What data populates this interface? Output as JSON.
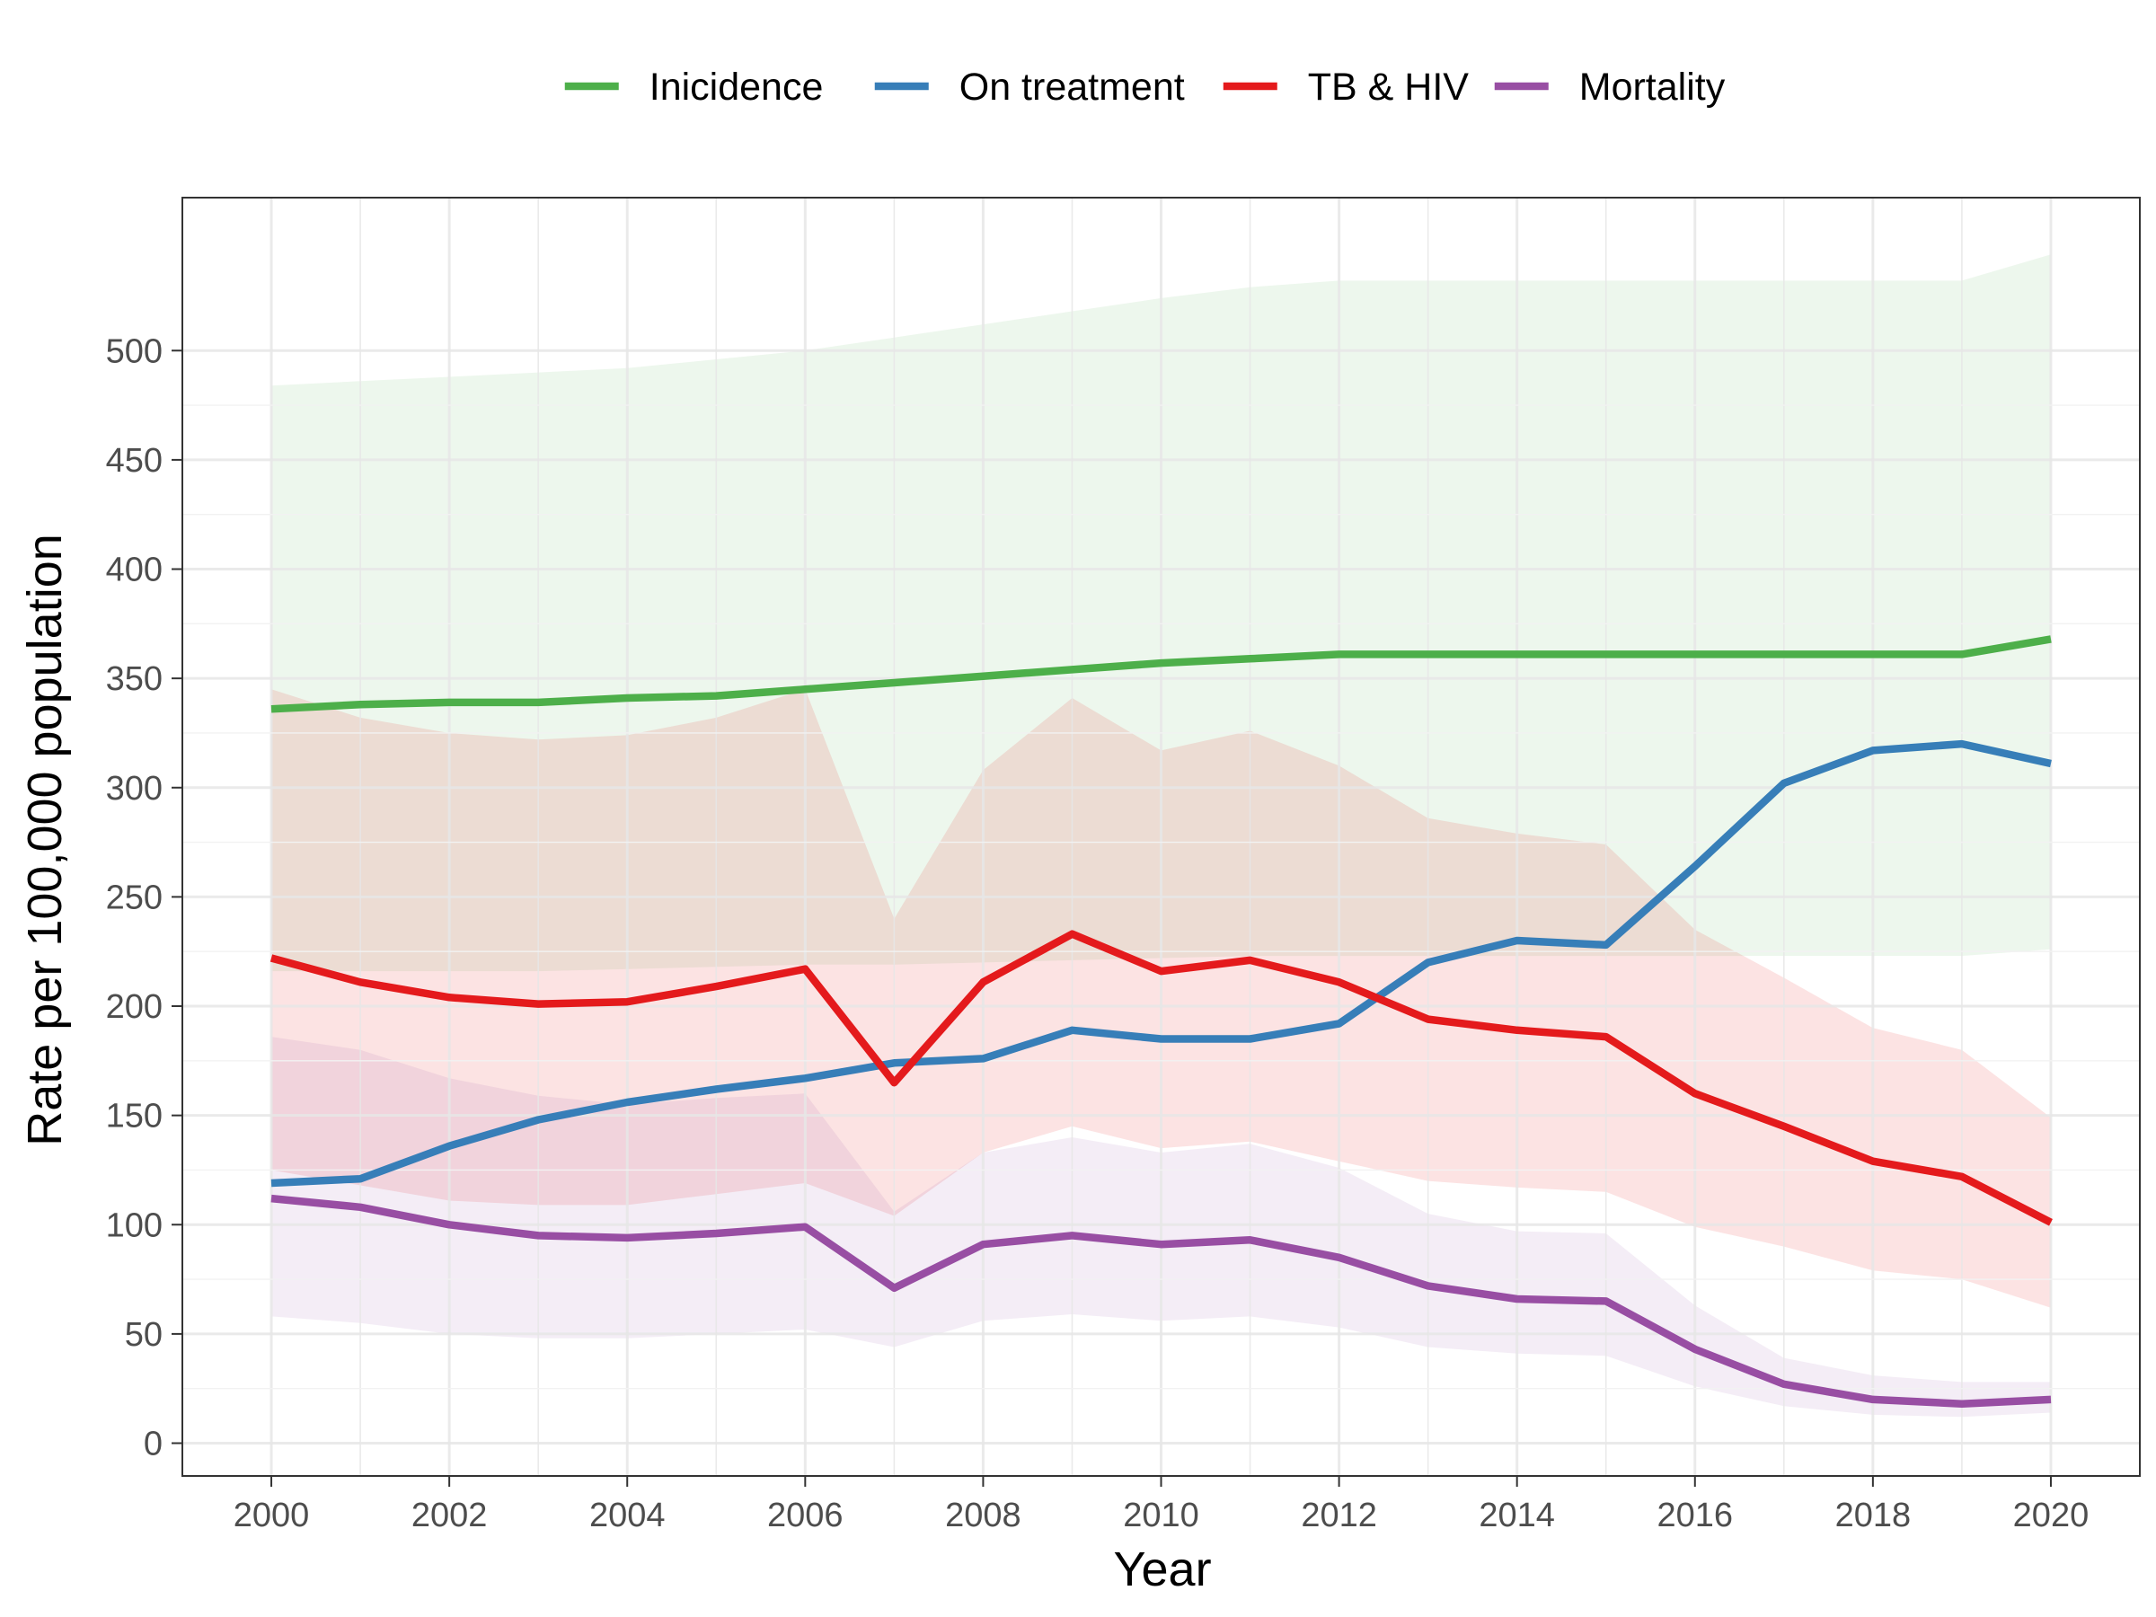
{
  "chart_data": {
    "type": "line",
    "xlabel": "Year",
    "ylabel": "Rate per 100,000 population",
    "xlim": [
      1999.0,
      2021.0
    ],
    "ylim": [
      -15,
      570
    ],
    "x_ticks": [
      2000,
      2002,
      2004,
      2006,
      2008,
      2010,
      2012,
      2014,
      2016,
      2018,
      2020
    ],
    "y_ticks": [
      0,
      50,
      100,
      150,
      200,
      250,
      300,
      350,
      400,
      450,
      500
    ],
    "x_tick_labels": [
      "2000",
      "2002",
      "2004",
      "2006",
      "2008",
      "2010",
      "2012",
      "2014",
      "2016",
      "2018",
      "2020"
    ],
    "y_tick_labels": [
      "0",
      "50",
      "100",
      "150",
      "200",
      "250",
      "300",
      "350",
      "400",
      "450",
      "500"
    ],
    "grid": true,
    "legend_position": "top",
    "x": [
      2000,
      2001,
      2002,
      2003,
      2004,
      2005,
      2006,
      2007,
      2008,
      2009,
      2010,
      2011,
      2012,
      2013,
      2014,
      2015,
      2016,
      2017,
      2018,
      2019,
      2020
    ],
    "series": [
      {
        "name": "Inicidence",
        "color": "#4daf4a",
        "values": [
          336,
          338,
          339,
          339,
          341,
          342,
          345,
          348,
          351,
          354,
          357,
          359,
          361,
          361,
          361,
          361,
          361,
          361,
          361,
          361,
          368
        ],
        "lower": [
          216,
          216,
          216,
          216,
          217,
          218,
          219,
          219,
          220,
          221,
          222,
          223,
          223,
          223,
          223,
          223,
          223,
          223,
          223,
          223,
          226
        ],
        "upper": [
          484,
          486,
          488,
          490,
          492,
          496,
          500,
          506,
          512,
          518,
          524,
          529,
          532,
          532,
          532,
          532,
          532,
          532,
          532,
          532,
          544
        ]
      },
      {
        "name": "On treatment",
        "color": "#377eb8",
        "values": [
          119,
          121,
          136,
          148,
          156,
          162,
          167,
          174,
          176,
          189,
          185,
          185,
          192,
          220,
          230,
          228,
          264,
          302,
          317,
          320,
          311
        ]
      },
      {
        "name": "TB & HIV",
        "color": "#e41a1c",
        "values": [
          222,
          211,
          204,
          201,
          202,
          209,
          217,
          165,
          211,
          233,
          216,
          221,
          211,
          194,
          189,
          186,
          160,
          145,
          129,
          122,
          101
        ],
        "lower": [
          125,
          118,
          111,
          109,
          109,
          114,
          119,
          104,
          133,
          145,
          135,
          138,
          129,
          120,
          117,
          115,
          99,
          90,
          79,
          75,
          62
        ],
        "upper": [
          345,
          332,
          325,
          322,
          324,
          332,
          345,
          240,
          308,
          341,
          317,
          326,
          310,
          286,
          279,
          274,
          235,
          213,
          190,
          180,
          149
        ]
      },
      {
        "name": "Mortality",
        "color": "#984ea3",
        "values": [
          112,
          108,
          100,
          95,
          94,
          96,
          99,
          71,
          91,
          95,
          91,
          93,
          85,
          72,
          66,
          65,
          43,
          27,
          20,
          18,
          20
        ],
        "lower": [
          58,
          55,
          50,
          48,
          48,
          50,
          52,
          44,
          56,
          59,
          56,
          58,
          53,
          44,
          41,
          40,
          26,
          17,
          13,
          12,
          14
        ],
        "upper": [
          186,
          180,
          167,
          159,
          155,
          158,
          160,
          106,
          133,
          140,
          133,
          137,
          126,
          105,
          97,
          96,
          63,
          39,
          31,
          28,
          28
        ]
      }
    ]
  }
}
